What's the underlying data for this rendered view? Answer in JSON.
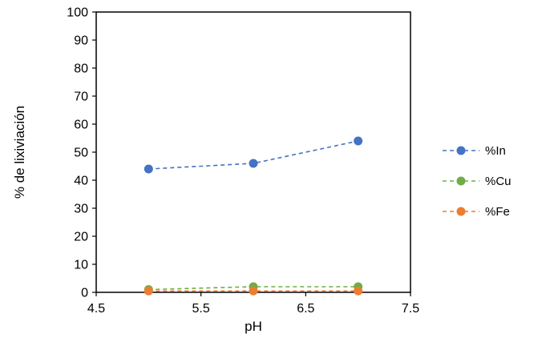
{
  "chart_data": {
    "type": "line",
    "x": [
      5,
      6,
      7
    ],
    "series": [
      {
        "name": "%In",
        "values": [
          44,
          46,
          54
        ],
        "color": "#4472C4"
      },
      {
        "name": "%Cu",
        "values": [
          1,
          2,
          2
        ],
        "color": "#70AD47"
      },
      {
        "name": "%Fe",
        "values": [
          0.5,
          0.5,
          0.5
        ],
        "color": "#ED7D31"
      }
    ],
    "title": "",
    "xlabel": "pH",
    "ylabel": "% de lixiviación",
    "xlim": [
      4.5,
      7.5
    ],
    "ylim": [
      0,
      100
    ],
    "x_ticks": [
      4.5,
      5.5,
      6.5,
      7.5
    ],
    "y_ticks": [
      0,
      10,
      20,
      30,
      40,
      50,
      60,
      70,
      80,
      90,
      100
    ],
    "line_style": "dashed",
    "marker": "circle",
    "grid": false,
    "legend_position": "right",
    "axis_color": "#000000"
  }
}
